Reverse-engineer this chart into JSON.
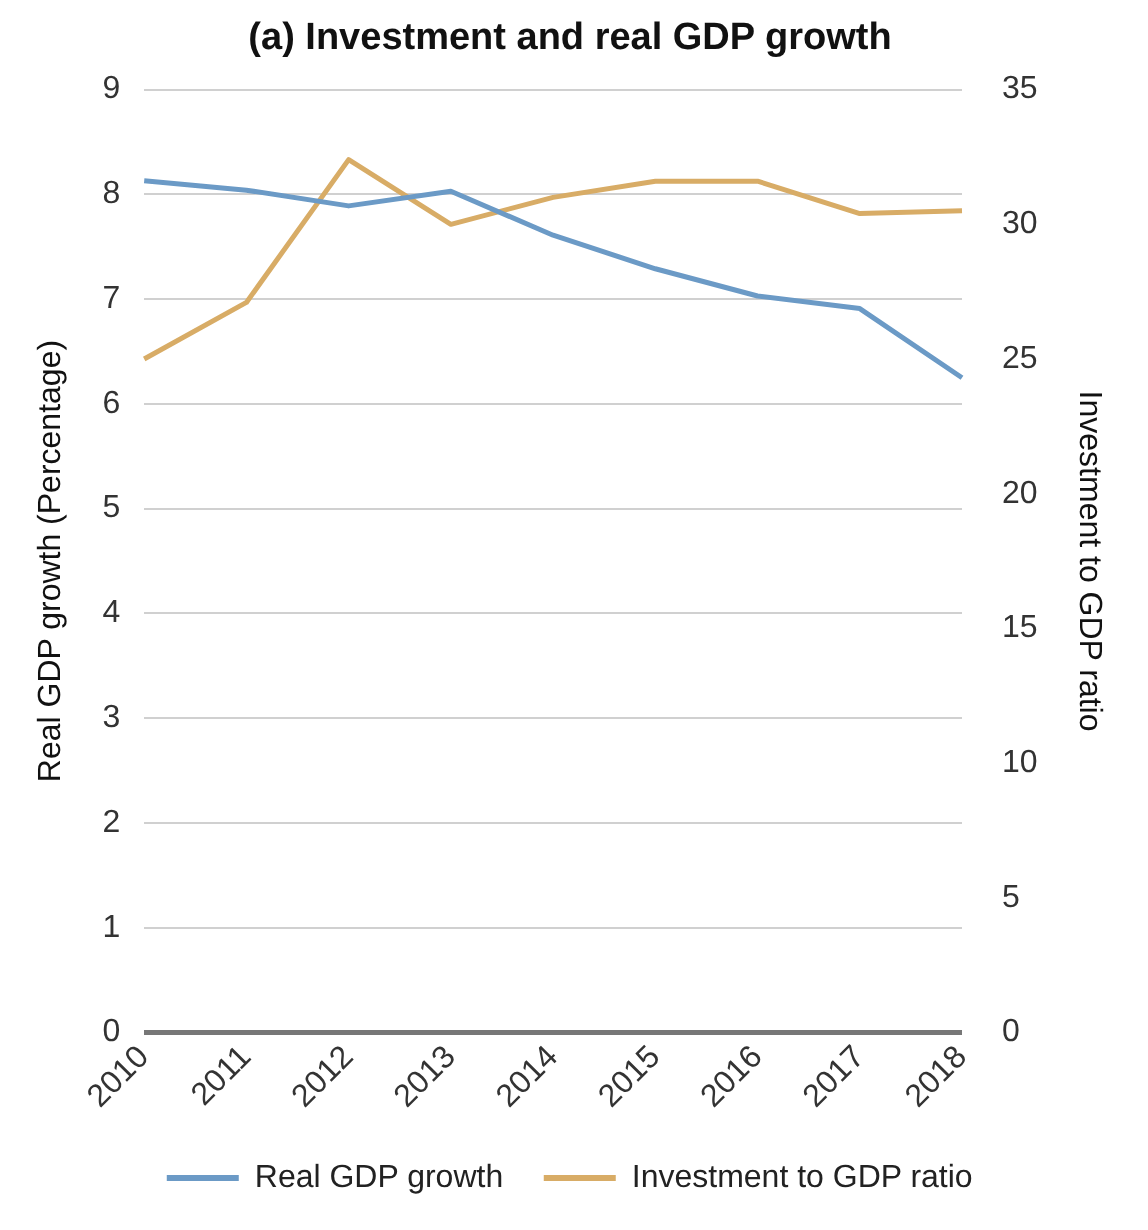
{
  "chart_data": {
    "type": "line",
    "title": "(a) Investment and real GDP growth",
    "ylabel": "Real GDP growth (Percentage)",
    "y2label": "Investment to GDP ratio",
    "categories": [
      "2010",
      "2011",
      "2012",
      "2013",
      "2014",
      "2015",
      "2016",
      "2017",
      "2018"
    ],
    "series": [
      {
        "name": "Real GDP growth",
        "color": "#6b9ac6",
        "values": [
          8.13,
          8.04,
          7.89,
          8.03,
          7.61,
          7.29,
          7.03,
          6.91,
          6.25
        ]
      },
      {
        "name": "Investment to GDP ratio",
        "color": "#d8ac66",
        "axis": "y2",
        "values": [
          25.0,
          27.1,
          32.4,
          30.0,
          31.0,
          31.6,
          31.6,
          30.4,
          30.5
        ]
      }
    ],
    "ylim": [
      0,
      9
    ],
    "yticks": [
      0,
      1,
      2,
      3,
      4,
      5,
      6,
      7,
      8,
      9
    ],
    "y2lim": [
      0,
      35
    ],
    "y2ticks": [
      0,
      5,
      10,
      15,
      20,
      25,
      30,
      35
    ],
    "grid": "y",
    "legend": "bottom",
    "marker": "none",
    "line_style": "solid"
  }
}
